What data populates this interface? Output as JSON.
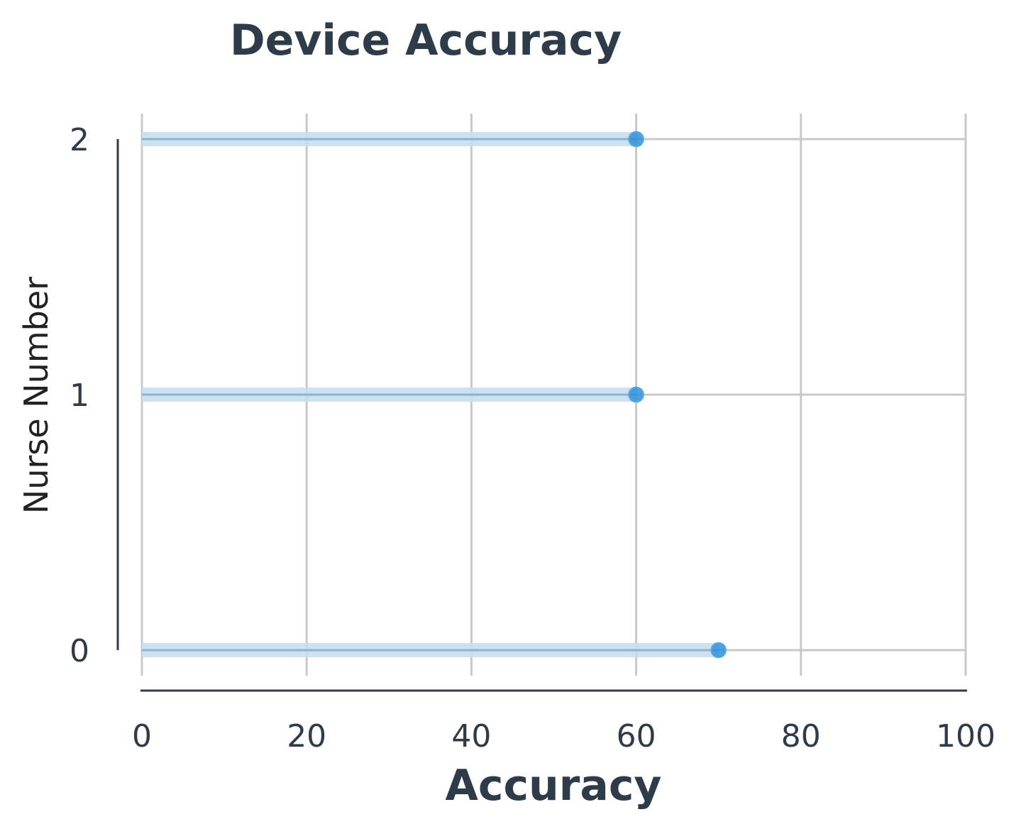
{
  "chart_data": {
    "type": "lollipop",
    "title": "Device Accuracy",
    "xlabel": "Accuracy",
    "ylabel": "Nurse Number",
    "xlim": [
      0,
      100
    ],
    "ylim": [
      0,
      2
    ],
    "x_ticks": [
      "0",
      "20",
      "40",
      "60",
      "80",
      "100"
    ],
    "y_ticks": [
      "0",
      "1",
      "2"
    ],
    "orientation": "horizontal",
    "grid": true,
    "categories": [
      0,
      1,
      2
    ],
    "values": [
      70,
      60,
      60
    ],
    "colors": {
      "marker": "#2f8fd8",
      "stem": "#c6dff0",
      "axis": "#2e3b49",
      "grid": "#c8c8c8"
    }
  }
}
